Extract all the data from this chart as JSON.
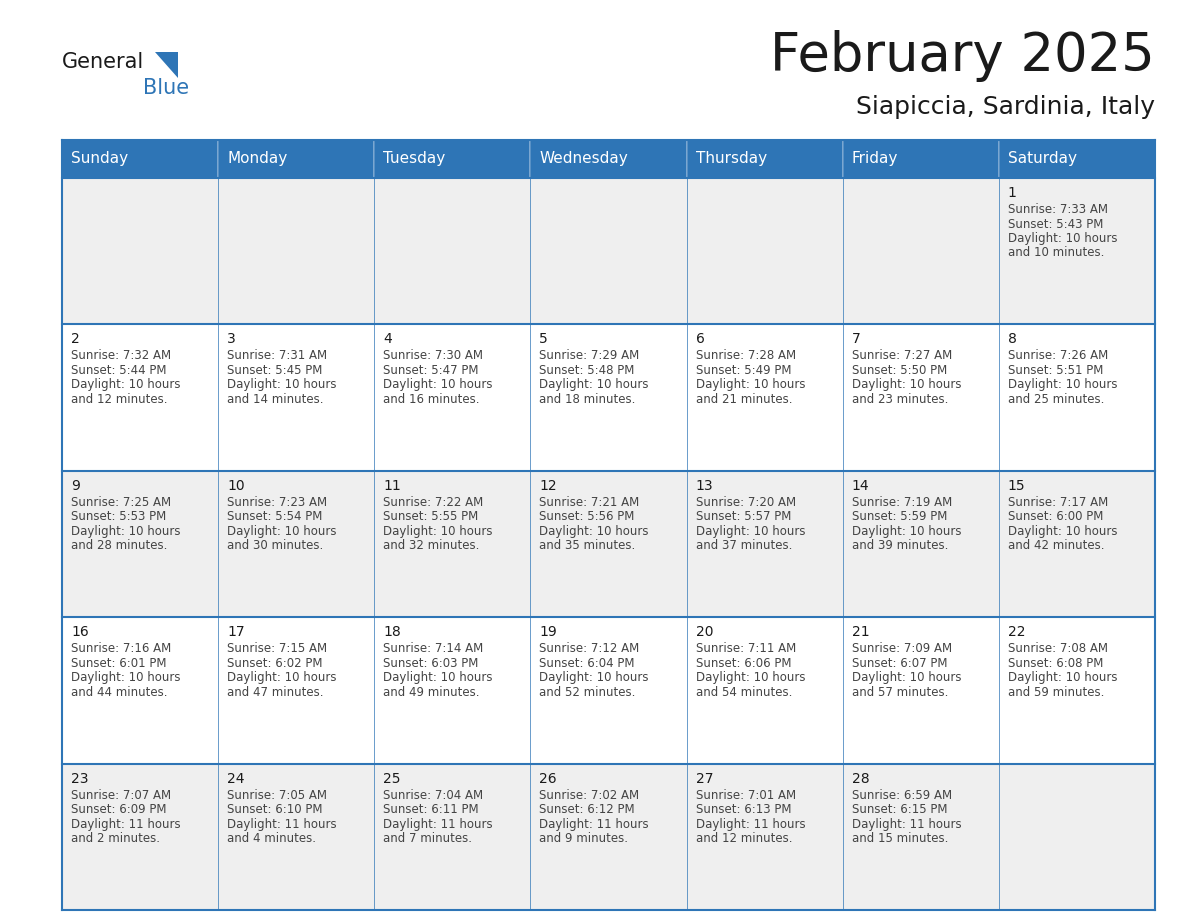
{
  "title": "February 2025",
  "subtitle": "Siapiccia, Sardinia, Italy",
  "days_of_week": [
    "Sunday",
    "Monday",
    "Tuesday",
    "Wednesday",
    "Thursday",
    "Friday",
    "Saturday"
  ],
  "header_bg": "#2E75B6",
  "header_text": "#FFFFFF",
  "cell_bg_gray": "#EFEFEF",
  "cell_bg_white": "#FFFFFF",
  "border_color": "#2E75B6",
  "title_color": "#1a1a1a",
  "subtitle_color": "#1a1a1a",
  "text_color": "#444444",
  "day_num_color": "#1a1a1a",
  "logo_black": "#1a1a1a",
  "logo_blue": "#2E75B6",
  "calendar_data": [
    [
      null,
      null,
      null,
      null,
      null,
      null,
      {
        "day": "1",
        "sunrise": "7:33 AM",
        "sunset": "5:43 PM",
        "daylight": "10 hours",
        "daylight2": "and 10 minutes."
      }
    ],
    [
      {
        "day": "2",
        "sunrise": "7:32 AM",
        "sunset": "5:44 PM",
        "daylight": "10 hours",
        "daylight2": "and 12 minutes."
      },
      {
        "day": "3",
        "sunrise": "7:31 AM",
        "sunset": "5:45 PM",
        "daylight": "10 hours",
        "daylight2": "and 14 minutes."
      },
      {
        "day": "4",
        "sunrise": "7:30 AM",
        "sunset": "5:47 PM",
        "daylight": "10 hours",
        "daylight2": "and 16 minutes."
      },
      {
        "day": "5",
        "sunrise": "7:29 AM",
        "sunset": "5:48 PM",
        "daylight": "10 hours",
        "daylight2": "and 18 minutes."
      },
      {
        "day": "6",
        "sunrise": "7:28 AM",
        "sunset": "5:49 PM",
        "daylight": "10 hours",
        "daylight2": "and 21 minutes."
      },
      {
        "day": "7",
        "sunrise": "7:27 AM",
        "sunset": "5:50 PM",
        "daylight": "10 hours",
        "daylight2": "and 23 minutes."
      },
      {
        "day": "8",
        "sunrise": "7:26 AM",
        "sunset": "5:51 PM",
        "daylight": "10 hours",
        "daylight2": "and 25 minutes."
      }
    ],
    [
      {
        "day": "9",
        "sunrise": "7:25 AM",
        "sunset": "5:53 PM",
        "daylight": "10 hours",
        "daylight2": "and 28 minutes."
      },
      {
        "day": "10",
        "sunrise": "7:23 AM",
        "sunset": "5:54 PM",
        "daylight": "10 hours",
        "daylight2": "and 30 minutes."
      },
      {
        "day": "11",
        "sunrise": "7:22 AM",
        "sunset": "5:55 PM",
        "daylight": "10 hours",
        "daylight2": "and 32 minutes."
      },
      {
        "day": "12",
        "sunrise": "7:21 AM",
        "sunset": "5:56 PM",
        "daylight": "10 hours",
        "daylight2": "and 35 minutes."
      },
      {
        "day": "13",
        "sunrise": "7:20 AM",
        "sunset": "5:57 PM",
        "daylight": "10 hours",
        "daylight2": "and 37 minutes."
      },
      {
        "day": "14",
        "sunrise": "7:19 AM",
        "sunset": "5:59 PM",
        "daylight": "10 hours",
        "daylight2": "and 39 minutes."
      },
      {
        "day": "15",
        "sunrise": "7:17 AM",
        "sunset": "6:00 PM",
        "daylight": "10 hours",
        "daylight2": "and 42 minutes."
      }
    ],
    [
      {
        "day": "16",
        "sunrise": "7:16 AM",
        "sunset": "6:01 PM",
        "daylight": "10 hours",
        "daylight2": "and 44 minutes."
      },
      {
        "day": "17",
        "sunrise": "7:15 AM",
        "sunset": "6:02 PM",
        "daylight": "10 hours",
        "daylight2": "and 47 minutes."
      },
      {
        "day": "18",
        "sunrise": "7:14 AM",
        "sunset": "6:03 PM",
        "daylight": "10 hours",
        "daylight2": "and 49 minutes."
      },
      {
        "day": "19",
        "sunrise": "7:12 AM",
        "sunset": "6:04 PM",
        "daylight": "10 hours",
        "daylight2": "and 52 minutes."
      },
      {
        "day": "20",
        "sunrise": "7:11 AM",
        "sunset": "6:06 PM",
        "daylight": "10 hours",
        "daylight2": "and 54 minutes."
      },
      {
        "day": "21",
        "sunrise": "7:09 AM",
        "sunset": "6:07 PM",
        "daylight": "10 hours",
        "daylight2": "and 57 minutes."
      },
      {
        "day": "22",
        "sunrise": "7:08 AM",
        "sunset": "6:08 PM",
        "daylight": "10 hours",
        "daylight2": "and 59 minutes."
      }
    ],
    [
      {
        "day": "23",
        "sunrise": "7:07 AM",
        "sunset": "6:09 PM",
        "daylight": "11 hours",
        "daylight2": "and 2 minutes."
      },
      {
        "day": "24",
        "sunrise": "7:05 AM",
        "sunset": "6:10 PM",
        "daylight": "11 hours",
        "daylight2": "and 4 minutes."
      },
      {
        "day": "25",
        "sunrise": "7:04 AM",
        "sunset": "6:11 PM",
        "daylight": "11 hours",
        "daylight2": "and 7 minutes."
      },
      {
        "day": "26",
        "sunrise": "7:02 AM",
        "sunset": "6:12 PM",
        "daylight": "11 hours",
        "daylight2": "and 9 minutes."
      },
      {
        "day": "27",
        "sunrise": "7:01 AM",
        "sunset": "6:13 PM",
        "daylight": "11 hours",
        "daylight2": "and 12 minutes."
      },
      {
        "day": "28",
        "sunrise": "6:59 AM",
        "sunset": "6:15 PM",
        "daylight": "11 hours",
        "daylight2": "and 15 minutes."
      },
      null
    ]
  ]
}
